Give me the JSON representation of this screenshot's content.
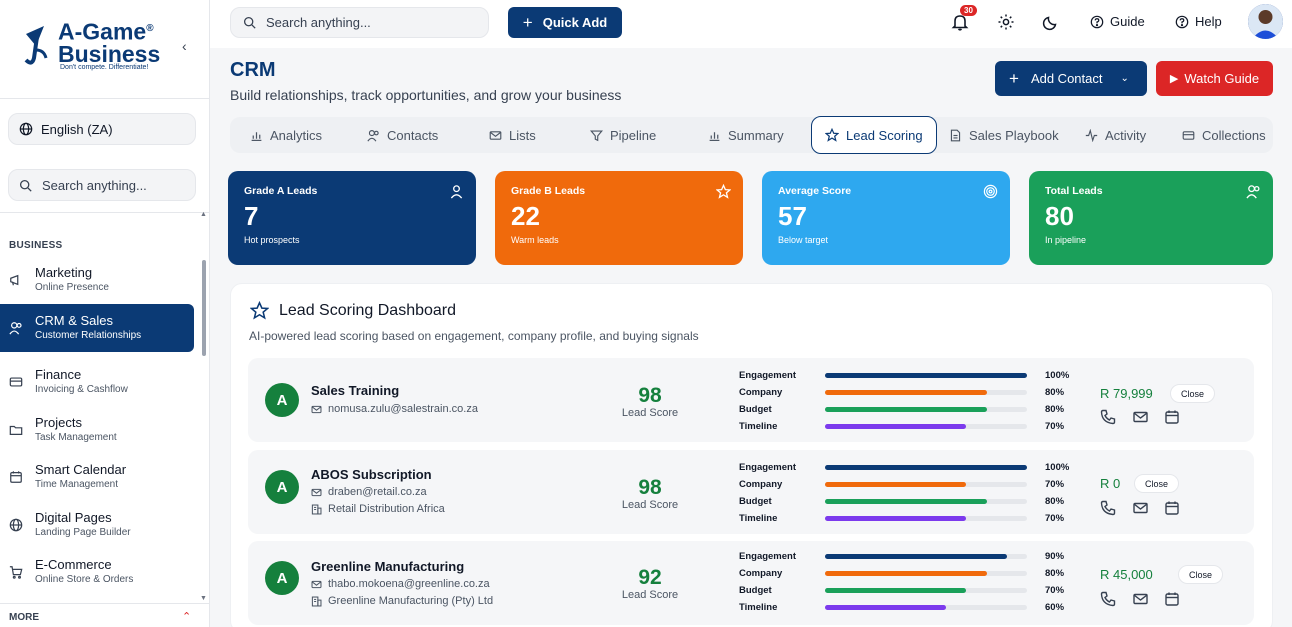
{
  "brand": {
    "name_line1": "A-Game",
    "name_line2": "Business",
    "registered": "®",
    "tagline": "Don't compete. Differentiate!"
  },
  "sidebar": {
    "language": "English (ZA)",
    "search_placeholder": "Search anything...",
    "section": "BUSINESS",
    "items": [
      {
        "title": "Marketing",
        "subtitle": "Online Presence"
      },
      {
        "title": "CRM & Sales",
        "subtitle": "Customer Relationships"
      },
      {
        "title": "Finance",
        "subtitle": "Invoicing & Cashflow"
      },
      {
        "title": "Projects",
        "subtitle": "Task Management"
      },
      {
        "title": "Smart Calendar",
        "subtitle": "Time Management"
      },
      {
        "title": "Digital Pages",
        "subtitle": "Landing Page Builder"
      },
      {
        "title": "E-Commerce",
        "subtitle": "Online Store & Orders"
      }
    ],
    "more": "MORE"
  },
  "topbar": {
    "search_placeholder": "Search anything...",
    "quick_add": "Quick Add",
    "notifications": "30",
    "guide": "Guide",
    "help": "Help"
  },
  "header": {
    "title": "CRM",
    "subtitle": "Build relationships, track opportunities, and grow your business",
    "add_contact": "Add Contact",
    "watch_guide": "Watch Guide"
  },
  "tabs": [
    "Analytics",
    "Contacts",
    "Lists",
    "Pipeline",
    "Summary",
    "Lead Scoring",
    "Sales Playbook",
    "Activity",
    "Collections"
  ],
  "stats": [
    {
      "label": "Grade A Leads",
      "value": "7",
      "sub": "Hot prospects",
      "color": "#0b3a75"
    },
    {
      "label": "Grade B Leads",
      "value": "22",
      "sub": "Warm leads",
      "color": "#f06a0c"
    },
    {
      "label": "Average Score",
      "value": "57",
      "sub": "Below target",
      "color": "#2ea8ef"
    },
    {
      "label": "Total Leads",
      "value": "80",
      "sub": "In pipeline",
      "color": "#1aa05a"
    }
  ],
  "dashboard": {
    "title": "Lead Scoring Dashboard",
    "subtitle": "AI-powered lead scoring based on engagement, company profile, and buying signals",
    "score_label": "Lead Score",
    "close_label": "Close",
    "metric_labels": [
      "Engagement",
      "Company",
      "Budget",
      "Timeline"
    ],
    "metric_colors": [
      "#0b3a75",
      "#f06a0c",
      "#1aa05a",
      "#7c3aed"
    ],
    "leads": [
      {
        "grade": "A",
        "name": "Sales Training",
        "email": "nomusa.zulu@salestrain.co.za",
        "company": "",
        "score": "98",
        "value": "R 79,999",
        "metrics": [
          100,
          80,
          80,
          70
        ],
        "metric_text": [
          "100%",
          "80%",
          "80%",
          "70%"
        ]
      },
      {
        "grade": "A",
        "name": "ABOS Subscription",
        "email": "draben@retail.co.za",
        "company": "Retail Distribution Africa",
        "score": "98",
        "value": "R 0",
        "metrics": [
          100,
          70,
          80,
          70
        ],
        "metric_text": [
          "100%",
          "70%",
          "80%",
          "70%"
        ]
      },
      {
        "grade": "A",
        "name": "Greenline Manufacturing",
        "email": "thabo.mokoena@greenline.co.za",
        "company": "Greenline Manufacturing (Pty) Ltd",
        "score": "92",
        "value": "R 45,000",
        "metrics": [
          90,
          80,
          70,
          60
        ],
        "metric_text": [
          "90%",
          "80%",
          "70%",
          "60%"
        ]
      }
    ]
  }
}
